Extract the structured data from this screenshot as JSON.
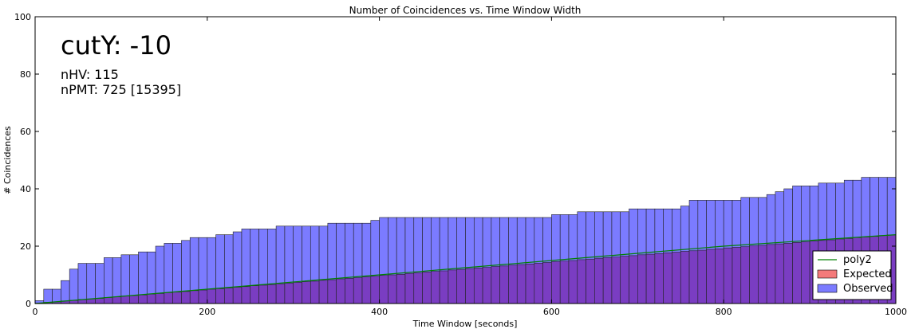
{
  "chart_data": {
    "type": "bar",
    "title": "Number of Coincidences vs. Time Window Width",
    "xlabel": "Time Window [seconds]",
    "ylabel": "# Coincidences",
    "xlim": [
      0,
      1000
    ],
    "ylim": [
      0,
      100
    ],
    "xticks": [
      0,
      200,
      400,
      600,
      800,
      1000
    ],
    "yticks": [
      0,
      20,
      40,
      60,
      80,
      100
    ],
    "grid": false,
    "legend_position": "bottom-right",
    "bin_width": 10,
    "bin_starts": [
      0,
      10,
      20,
      30,
      40,
      50,
      60,
      70,
      80,
      90,
      100,
      110,
      120,
      130,
      140,
      150,
      160,
      170,
      180,
      190,
      200,
      210,
      220,
      230,
      240,
      250,
      260,
      270,
      280,
      290,
      300,
      310,
      320,
      330,
      340,
      350,
      360,
      370,
      380,
      390,
      400,
      410,
      420,
      430,
      440,
      450,
      460,
      470,
      480,
      490,
      500,
      510,
      520,
      530,
      540,
      550,
      560,
      570,
      580,
      590,
      600,
      610,
      620,
      630,
      640,
      650,
      660,
      670,
      680,
      690,
      700,
      710,
      720,
      730,
      740,
      750,
      760,
      770,
      780,
      790,
      800,
      810,
      820,
      830,
      840,
      850,
      860,
      870,
      880,
      890,
      900,
      910,
      920,
      930,
      940,
      950,
      960,
      970,
      980,
      990
    ],
    "series": [
      {
        "name": "Observed",
        "kind": "bar",
        "color": "#7b7bff",
        "values": [
          1,
          5,
          5,
          8,
          12,
          14,
          14,
          14,
          16,
          16,
          17,
          17,
          18,
          18,
          20,
          21,
          21,
          22,
          23,
          23,
          23,
          24,
          24,
          25,
          26,
          26,
          26,
          26,
          27,
          27,
          27,
          27,
          27,
          27,
          28,
          28,
          28,
          28,
          28,
          29,
          30,
          30,
          30,
          30,
          30,
          30,
          30,
          30,
          30,
          30,
          30,
          30,
          30,
          30,
          30,
          30,
          30,
          30,
          30,
          30,
          31,
          31,
          31,
          32,
          32,
          32,
          32,
          32,
          32,
          33,
          33,
          33,
          33,
          33,
          33,
          34,
          36,
          36,
          36,
          36,
          36,
          36,
          37,
          37,
          37,
          38,
          39,
          40,
          41,
          41,
          41,
          42,
          42,
          42,
          43,
          43,
          44,
          44,
          44,
          44
        ]
      },
      {
        "name": "Expected",
        "kind": "bar",
        "color": "#f47a7a",
        "values": [
          0.1,
          0.4,
          0.6,
          0.9,
          1.1,
          1.4,
          1.6,
          1.8,
          2.1,
          2.3,
          2.6,
          2.8,
          3.0,
          3.3,
          3.5,
          3.8,
          4.0,
          4.2,
          4.5,
          4.7,
          5.0,
          5.2,
          5.4,
          5.7,
          5.9,
          6.2,
          6.4,
          6.6,
          6.9,
          7.1,
          7.4,
          7.6,
          7.8,
          8.1,
          8.3,
          8.6,
          8.8,
          9.0,
          9.3,
          9.5,
          9.8,
          10.0,
          10.2,
          10.5,
          10.7,
          11.0,
          11.2,
          11.4,
          11.7,
          11.9,
          12.2,
          12.4,
          12.6,
          12.9,
          13.1,
          13.4,
          13.6,
          13.8,
          14.1,
          14.3,
          14.6,
          14.8,
          15.0,
          15.3,
          15.5,
          15.8,
          16.0,
          16.2,
          16.5,
          16.7,
          17.0,
          17.2,
          17.4,
          17.7,
          17.9,
          18.2,
          18.4,
          18.6,
          18.9,
          19.1,
          19.4,
          19.6,
          19.8,
          20.1,
          20.3,
          20.6,
          20.8,
          21.0,
          21.3,
          21.5,
          21.8,
          22.0,
          22.2,
          22.5,
          22.7,
          23.0,
          23.2,
          23.4,
          23.7,
          23.9
        ]
      },
      {
        "name": "poly2",
        "kind": "line",
        "color": "#008000",
        "x": [
          0,
          100,
          200,
          300,
          400,
          500,
          600,
          700,
          800,
          900,
          1000
        ],
        "y": [
          0,
          2.5,
          5,
          7.5,
          10,
          12.5,
          15,
          17.5,
          20,
          22,
          24
        ]
      }
    ],
    "annotations": [
      "cutY: -10",
      "nHV: 115",
      "nPMT: 725 [15395]"
    ],
    "overlap_color": "#7a3dc2"
  }
}
